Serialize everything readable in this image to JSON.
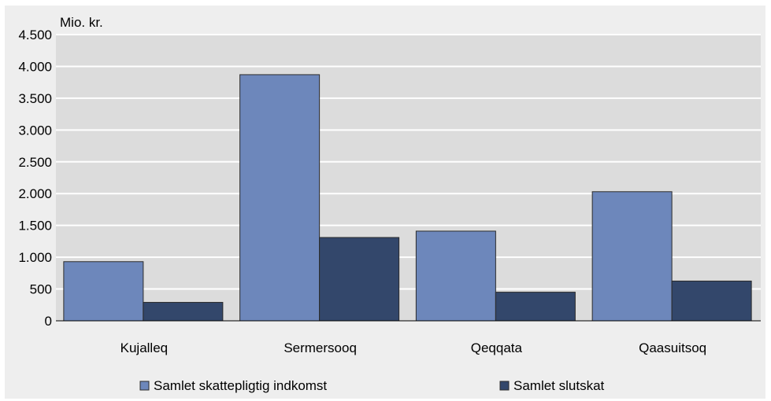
{
  "chart_data": {
    "type": "bar",
    "unit_label": "Mio. kr.",
    "categories": [
      "Kujalleq",
      "Sermersooq",
      "Qeqqata",
      "Qaasuitsoq"
    ],
    "series": [
      {
        "name": "Samlet skattepligtig indkomst",
        "color": "#6d87bb",
        "values": [
          930,
          3870,
          1410,
          2030
        ]
      },
      {
        "name": "Samlet slutskat",
        "color": "#33476b",
        "values": [
          290,
          1310,
          450,
          625
        ]
      }
    ],
    "ylim": [
      0,
      4500
    ],
    "yticks": [
      0,
      500,
      1000,
      1500,
      2000,
      2500,
      3000,
      3500,
      4000,
      4500
    ],
    "ytick_labels": [
      "0",
      "500",
      "1.000",
      "1.500",
      "2.000",
      "2.500",
      "3.000",
      "3.500",
      "4.000",
      "4.500"
    ],
    "grid": true,
    "plot_background": "#dcdcdc",
    "legend_position": "bottom"
  }
}
